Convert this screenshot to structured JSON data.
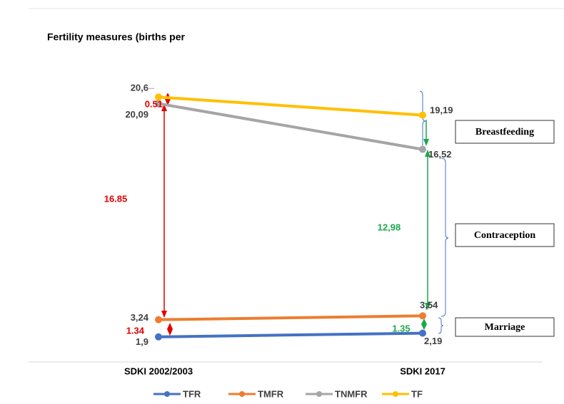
{
  "chart_data": {
    "type": "line",
    "title": "Fertility measures (births per",
    "categories": [
      "SDKI 2002/2003",
      "SDKI 2017"
    ],
    "series": [
      {
        "name": "TFR",
        "color": "#4472c4",
        "values": [
          1.9,
          2.19
        ],
        "value_labels": [
          "1,9",
          "2,19"
        ]
      },
      {
        "name": "TMFR",
        "color": "#ed7d31",
        "values": [
          3.24,
          3.54
        ],
        "value_labels": [
          "3,24",
          "3,54"
        ]
      },
      {
        "name": "TNMFR",
        "color": "#a5a5a5",
        "values": [
          20.09,
          16.52
        ],
        "value_labels": [
          "20,09",
          "16,52"
        ]
      },
      {
        "name": "TF",
        "color": "#ffc000",
        "values": [
          20.6,
          19.19
        ],
        "value_labels": [
          "20,6",
          "19,19"
        ]
      }
    ],
    "ylim": [
      0,
      22
    ],
    "legend": "bottom",
    "annotations": [
      {
        "text": "0.51",
        "color": "#e00000"
      },
      {
        "text": "16.85",
        "color": "#e00000"
      },
      {
        "text": "1.34",
        "color": "#e00000"
      },
      {
        "text": "12,98",
        "color": "#1aa84a"
      },
      {
        "text": "1.35",
        "color": "#1aa84a"
      },
      {
        "text": "Breastfeeding",
        "color": "#000000"
      },
      {
        "text": "Contraception",
        "color": "#000000"
      },
      {
        "text": "Marriage",
        "color": "#000000"
      }
    ]
  }
}
